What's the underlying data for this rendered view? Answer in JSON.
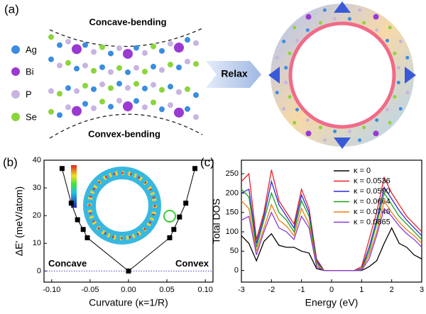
{
  "panel_a": {
    "label": "(a)",
    "top_label": "Concave-bending",
    "bottom_label": "Convex-bending",
    "legend": [
      "Ag",
      "Bi",
      "P",
      "Se"
    ],
    "arrow_label": "Relax"
  },
  "chart_data": [
    {
      "type": "line",
      "label": "(b)",
      "xlabel": "Curvature (κ=1/R)",
      "ylabel": "ΔE' (meV/atom)",
      "annotations": [
        "Concave",
        "Convex"
      ],
      "marker": "square",
      "x": [
        -0.0865,
        -0.0746,
        -0.0664,
        -0.059,
        -0.0536,
        0,
        0.0536,
        0.059,
        0.0664,
        0.0746,
        0.0865
      ],
      "series": [
        {
          "color": "#000000",
          "values": [
            37,
            24.5,
            18.5,
            15,
            12,
            0,
            12,
            15,
            19.5,
            24.5,
            37
          ]
        }
      ],
      "xlim": [
        -0.11,
        0.11
      ],
      "ylim": [
        -4,
        40
      ],
      "xticks": [
        {
          "value": -0.1,
          "label": "-0.10"
        },
        {
          "value": -0.05,
          "label": "-0.05"
        },
        {
          "value": 0,
          "label": "0.00"
        },
        {
          "value": 0.05,
          "label": "0.05"
        },
        {
          "value": 0.1,
          "label": "0.10"
        }
      ],
      "yticks": [
        0,
        10,
        20,
        30,
        40
      ]
    },
    {
      "type": "line",
      "label": "(c)",
      "xlabel": "Energy (eV)",
      "ylabel": "Total DOS",
      "legend": "upper right",
      "x": [
        -3,
        -2.75,
        -2.5,
        -2.25,
        -2,
        -1.75,
        -1.5,
        -1.25,
        -1,
        -0.75,
        -0.5,
        -0.25,
        0,
        0.25,
        0.5,
        0.75,
        1,
        1.25,
        1.5,
        1.75,
        2,
        2.25,
        2.5,
        2.75,
        3
      ],
      "series": [
        {
          "name": "κ = 0",
          "color": "#000000",
          "values": [
            90,
            70,
            25,
            75,
            95,
            65,
            60,
            60,
            50,
            45,
            5,
            0,
            0,
            0,
            0,
            0,
            0,
            10,
            25,
            70,
            110,
            70,
            60,
            40,
            30
          ]
        },
        {
          "name": "κ = 0.0536",
          "color": "#e8202a",
          "values": [
            230,
            250,
            80,
            150,
            260,
            180,
            150,
            120,
            210,
            160,
            30,
            0,
            0,
            0,
            0,
            0,
            10,
            80,
            150,
            240,
            200,
            170,
            140,
            120,
            100
          ]
        },
        {
          "name": "κ = 0.0590",
          "color": "#2a2ad8",
          "values": [
            200,
            210,
            70,
            140,
            230,
            170,
            140,
            110,
            195,
            150,
            25,
            0,
            0,
            0,
            0,
            0,
            5,
            60,
            130,
            215,
            185,
            155,
            130,
            110,
            90
          ]
        },
        {
          "name": "κ = 0.0664",
          "color": "#1aa01a",
          "values": [
            210,
            190,
            60,
            130,
            200,
            150,
            130,
            100,
            180,
            140,
            20,
            0,
            0,
            0,
            0,
            0,
            3,
            50,
            120,
            200,
            170,
            140,
            120,
            100,
            80
          ]
        },
        {
          "name": "κ = 0.0746",
          "color": "#f07a10",
          "values": [
            180,
            160,
            50,
            110,
            170,
            130,
            115,
            90,
            160,
            120,
            15,
            0,
            0,
            0,
            0,
            0,
            2,
            40,
            100,
            180,
            150,
            125,
            105,
            90,
            70
          ]
        },
        {
          "name": "κ = 0.0865",
          "color": "#8a3ad8",
          "values": [
            130,
            140,
            40,
            100,
            150,
            110,
            100,
            80,
            140,
            110,
            10,
            0,
            0,
            0,
            0,
            0,
            1,
            30,
            90,
            160,
            140,
            115,
            95,
            80,
            60
          ]
        }
      ],
      "xlim": [
        -3,
        3
      ],
      "ylim": [
        -30,
        285
      ],
      "xticks": [
        -3,
        -2,
        -1,
        0,
        1,
        2,
        3
      ],
      "yticks": [
        0,
        50,
        100,
        150,
        200,
        250
      ]
    }
  ]
}
